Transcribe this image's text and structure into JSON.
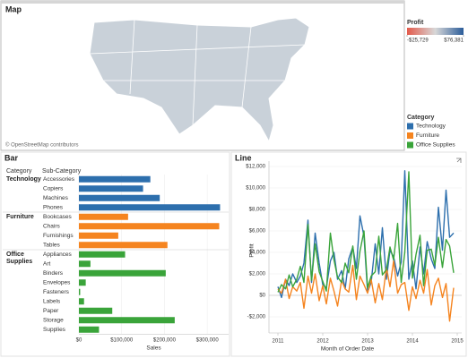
{
  "map": {
    "title": "Map",
    "attribution": "© OpenStreetMap contributors",
    "profit_legend": {
      "title": "Profit",
      "colors": [
        "#e35a4b",
        "#d8d8d8",
        "#2b5c99"
      ],
      "min": {
        "value": -25729,
        "label": "-$25,729"
      },
      "max": {
        "value": 76381,
        "label": "$76,381"
      }
    }
  },
  "category_legend": {
    "title": "Category",
    "items": [
      {
        "name": "Technology",
        "color": "#2d6fad"
      },
      {
        "name": "Furniture",
        "color": "#f5841f"
      },
      {
        "name": "Office Supplies",
        "color": "#3aa43a"
      }
    ]
  },
  "chart_data": [
    {
      "type": "bar",
      "title": "Bar",
      "row_header": "Category",
      "column_header": "Sub-Category",
      "x_label": "Sales",
      "xlim": [
        0,
        350000
      ],
      "xticks": [
        {
          "value": 0,
          "label": "$0"
        },
        {
          "value": 100000,
          "label": "$100,000"
        },
        {
          "value": 200000,
          "label": "$200,000"
        },
        {
          "value": 300000,
          "label": "$300,000"
        }
      ],
      "groups": [
        {
          "name": "Technology",
          "color": "#2d6fad",
          "categories": [
            "Accessories",
            "Copiers",
            "Machines",
            "Phones"
          ],
          "values": [
            167000,
            150000,
            189000,
            330000
          ]
        },
        {
          "name": "Furniture",
          "color": "#f5841f",
          "categories": [
            "Bookcases",
            "Chairs",
            "Furnishings",
            "Tables"
          ],
          "values": [
            115000,
            328000,
            92000,
            207000
          ]
        },
        {
          "name": "Office Supplies",
          "color": "#3aa43a",
          "categories": [
            "Appliances",
            "Art",
            "Binders",
            "Envelopes",
            "Fasteners",
            "Labels",
            "Paper",
            "Storage",
            "Supplies"
          ],
          "values": [
            108000,
            27000,
            203000,
            16000,
            3000,
            12000,
            78000,
            224000,
            47000
          ]
        }
      ]
    },
    {
      "type": "line",
      "title": "Line",
      "x_label": "Month of Order Date",
      "y_label": "Profit",
      "xlim": [
        2010.8,
        2015.1
      ],
      "xticks": [
        2011,
        2012,
        2013,
        2014,
        2015
      ],
      "ylim": [
        -3500,
        12500
      ],
      "yticks": [
        {
          "value": -2000,
          "label": "-$2,000"
        },
        {
          "value": 0,
          "label": "$0"
        },
        {
          "value": 2000,
          "label": "$2,000"
        },
        {
          "value": 4000,
          "label": "$4,000"
        },
        {
          "value": 6000,
          "label": "$6,000"
        },
        {
          "value": 8000,
          "label": "$8,000"
        },
        {
          "value": 10000,
          "label": "$10,000"
        },
        {
          "value": 12000,
          "label": "$12,000"
        }
      ],
      "x": [
        2011,
        2011.08,
        2011.17,
        2011.25,
        2011.33,
        2011.42,
        2011.5,
        2011.58,
        2011.67,
        2011.75,
        2011.83,
        2011.92,
        2012,
        2012.08,
        2012.17,
        2012.25,
        2012.33,
        2012.42,
        2012.5,
        2012.58,
        2012.67,
        2012.75,
        2012.83,
        2012.92,
        2013,
        2013.08,
        2013.17,
        2013.25,
        2013.33,
        2013.42,
        2013.5,
        2013.58,
        2013.67,
        2013.75,
        2013.83,
        2013.92,
        2014,
        2014.08,
        2014.17,
        2014.25,
        2014.33,
        2014.42,
        2014.5,
        2014.58,
        2014.67,
        2014.75,
        2014.83,
        2014.92
      ],
      "series": [
        {
          "name": "Technology",
          "color": "#2d6fad",
          "values": [
            800,
            -200,
            1500,
            900,
            2000,
            1200,
            1800,
            3000,
            7000,
            1200,
            5800,
            3000,
            1000,
            700,
            3200,
            4000,
            1500,
            2300,
            600,
            3400,
            4500,
            2500,
            7400,
            5500,
            300,
            1200,
            4800,
            2000,
            6300,
            1500,
            4200,
            3600,
            1800,
            3100,
            11600,
            1500,
            3200,
            600,
            4500,
            2000,
            5000,
            3400,
            2500,
            8200,
            4200,
            9800,
            5400,
            5800
          ]
        },
        {
          "name": "Furniture",
          "color": "#f5841f",
          "values": [
            600,
            200,
            1500,
            -300,
            800,
            400,
            1200,
            -1200,
            1800,
            200,
            2000,
            -500,
            900,
            -800,
            1600,
            400,
            -1000,
            1400,
            600,
            300,
            2800,
            -400,
            1800,
            1000,
            200,
            1500,
            -700,
            1100,
            -400,
            2600,
            800,
            3200,
            200,
            1000,
            1200,
            -1400,
            800,
            -300,
            1400,
            200,
            2400,
            -900,
            900,
            1600,
            -200,
            1100,
            -2400,
            700
          ]
        },
        {
          "name": "Office Supplies",
          "color": "#3aa43a",
          "values": [
            300,
            1000,
            600,
            1900,
            800,
            1500,
            2700,
            1200,
            6600,
            1400,
            4800,
            2200,
            1300,
            400,
            5800,
            3300,
            1700,
            1200,
            3000,
            2100,
            4600,
            1500,
            4100,
            6000,
            700,
            1800,
            2200,
            5500,
            1900,
            2400,
            4500,
            3300,
            6700,
            1200,
            4000,
            11500,
            1600,
            3800,
            5600,
            900,
            4200,
            4300,
            2800,
            5400,
            2600,
            5200,
            4600,
            2100
          ]
        }
      ]
    }
  ]
}
